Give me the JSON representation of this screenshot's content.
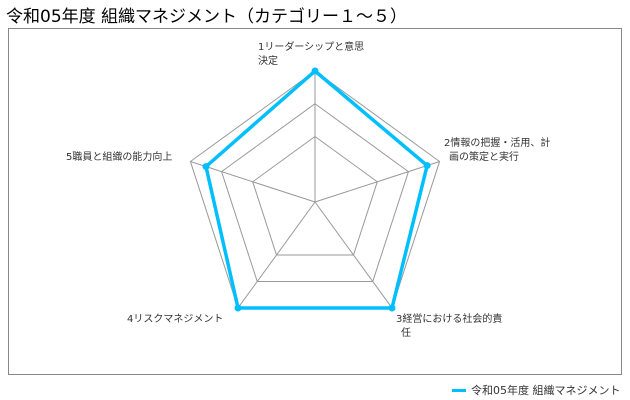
{
  "title": "令和05年度 組織マネジメント（カテゴリー１～５）",
  "chart_data": {
    "type": "radar",
    "title": "令和05年度 組織マネジメント（カテゴリー１～５）",
    "categories": [
      [
        "1リーダーシップと意思",
        "決定"
      ],
      [
        "2情報の把握・活用、計",
        "画の策定と実行"
      ],
      [
        "3経営における社会的責",
        "任"
      ],
      [
        "4リスクマネジメント"
      ],
      [
        "5職員と組織の能力向上"
      ]
    ],
    "rlim": [
      0,
      4
    ],
    "rings": [
      2,
      3,
      4
    ],
    "series": [
      {
        "name": "令和05年度 組織マネジメント",
        "values": [
          4,
          3.6,
          4,
          4,
          3.5
        ],
        "color": "#00bfff"
      }
    ],
    "legend": "bottom-right",
    "grid": true
  }
}
